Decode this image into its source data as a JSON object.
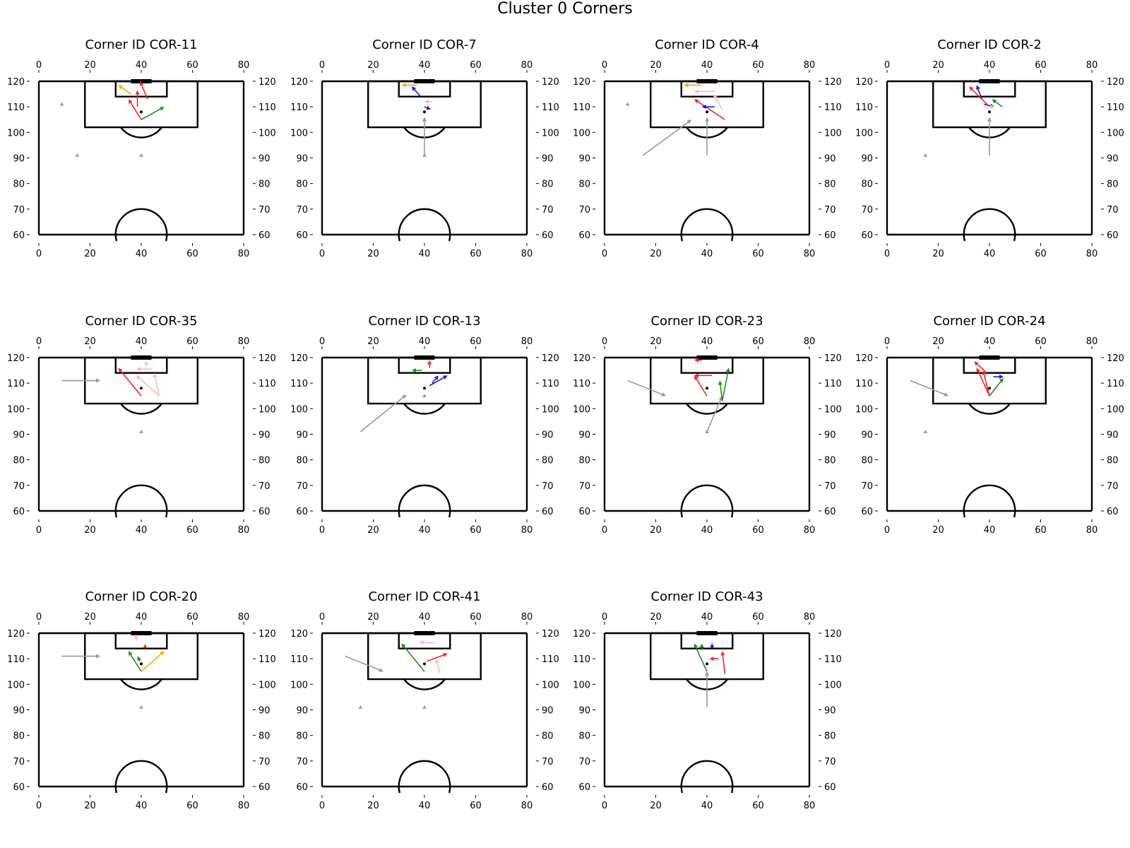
{
  "figure": {
    "title": "Cluster 0 Corners"
  },
  "colors": {
    "pitch_line": "#000000",
    "grey": "#999999",
    "red": "#ff2020",
    "pink": "#ffb6c1",
    "green": "#228b22",
    "blue": "#1515dd",
    "orange": "#ffa500",
    "ball": "#000000"
  },
  "chart_data": [
    {
      "type": "pitch",
      "title": "Corner ID COR-11",
      "xlim": [
        0,
        80
      ],
      "ylim": [
        60,
        120
      ],
      "x_ticks": [
        0,
        20,
        40,
        60,
        80
      ],
      "y_ticks": [
        60,
        70,
        80,
        90,
        100,
        110,
        120
      ],
      "ball": [
        40,
        108
      ],
      "markers": [
        [
          9,
          111
        ],
        [
          15,
          91
        ],
        [
          40,
          91
        ]
      ],
      "arrows": [
        {
          "color": "orange",
          "from": [
            36,
            115
          ],
          "to": [
            31,
            118.5
          ]
        },
        {
          "color": "red",
          "from": [
            42.5,
            113
          ],
          "to": [
            39.5,
            120
          ]
        },
        {
          "color": "red",
          "from": [
            38.5,
            110
          ],
          "to": [
            38.5,
            116.5
          ]
        },
        {
          "color": "red",
          "from": [
            40,
            105
          ],
          "to": [
            35,
            113
          ]
        },
        {
          "color": "green",
          "from": [
            40,
            105
          ],
          "to": [
            49,
            110
          ]
        }
      ]
    },
    {
      "type": "pitch",
      "title": "Corner ID COR-7",
      "xlim": [
        0,
        80
      ],
      "ylim": [
        60,
        120
      ],
      "x_ticks": [
        0,
        20,
        40,
        60,
        80
      ],
      "y_ticks": [
        60,
        70,
        80,
        90,
        100,
        110,
        120
      ],
      "ball": [
        40,
        108
      ],
      "markers": [
        [
          40,
          91
        ]
      ],
      "arrows": [
        {
          "color": "grey",
          "from": [
            40,
            91
          ],
          "to": [
            40,
            106
          ]
        },
        {
          "color": "orange",
          "from": [
            37,
            118.5
          ],
          "to": [
            31,
            118.5
          ]
        },
        {
          "color": "blue",
          "from": [
            38.5,
            114
          ],
          "to": [
            35,
            118
          ]
        },
        {
          "color": "pink",
          "from": [
            43,
            112
          ],
          "to": [
            40,
            112
          ]
        },
        {
          "color": "blue",
          "from": [
            40,
            110
          ],
          "to": [
            42.5,
            109
          ]
        }
      ]
    },
    {
      "type": "pitch",
      "title": "Corner ID COR-4",
      "xlim": [
        0,
        80
      ],
      "ylim": [
        60,
        120
      ],
      "x_ticks": [
        0,
        20,
        40,
        60,
        80
      ],
      "y_ticks": [
        60,
        70,
        80,
        90,
        100,
        110,
        120
      ],
      "ball": [
        40,
        108
      ],
      "markers": [
        [
          9,
          111
        ]
      ],
      "arrows": [
        {
          "color": "grey",
          "from": [
            15,
            91
          ],
          "to": [
            34,
            105
          ]
        },
        {
          "color": "grey",
          "from": [
            40,
            91
          ],
          "to": [
            40,
            106
          ]
        },
        {
          "color": "orange",
          "from": [
            38,
            118.5
          ],
          "to": [
            31,
            118.5
          ]
        },
        {
          "color": "pink",
          "from": [
            43,
            116
          ],
          "to": [
            35,
            116
          ]
        },
        {
          "color": "red",
          "from": [
            47,
            105
          ],
          "to": [
            35,
            113
          ]
        },
        {
          "color": "pink",
          "from": [
            46,
            109
          ],
          "to": [
            42.5,
            115
          ]
        },
        {
          "color": "blue",
          "from": [
            43,
            110
          ],
          "to": [
            38,
            110
          ]
        }
      ]
    },
    {
      "type": "pitch",
      "title": "Corner ID COR-2",
      "xlim": [
        0,
        80
      ],
      "ylim": [
        60,
        120
      ],
      "x_ticks": [
        0,
        20,
        40,
        60,
        80
      ],
      "y_ticks": [
        60,
        70,
        80,
        90,
        100,
        110,
        120
      ],
      "ball": [
        40,
        108
      ],
      "markers": [
        [
          15,
          91
        ]
      ],
      "arrows": [
        {
          "color": "grey",
          "from": [
            40,
            91
          ],
          "to": [
            40,
            106
          ]
        },
        {
          "color": "blue",
          "from": [
            37,
            113
          ],
          "to": [
            35,
            118.5
          ]
        },
        {
          "color": "red",
          "from": [
            39,
            111
          ],
          "to": [
            32,
            118
          ]
        },
        {
          "color": "green",
          "from": [
            45,
            110
          ],
          "to": [
            41,
            113
          ]
        },
        {
          "color": "blue",
          "from": [
            38,
            111
          ],
          "to": [
            42,
            110
          ]
        },
        {
          "color": "pink",
          "from": [
            38,
            110
          ],
          "to": [
            42,
            110
          ]
        }
      ]
    },
    {
      "type": "pitch",
      "title": "Corner ID COR-35",
      "xlim": [
        0,
        80
      ],
      "ylim": [
        60,
        120
      ],
      "x_ticks": [
        0,
        20,
        40,
        60,
        80
      ],
      "y_ticks": [
        60,
        70,
        80,
        90,
        100,
        110,
        120
      ],
      "ball": [
        40,
        108
      ],
      "markers": [
        [
          40,
          91
        ]
      ],
      "arrows": [
        {
          "color": "grey",
          "from": [
            9,
            111
          ],
          "to": [
            24,
            111
          ]
        },
        {
          "color": "red",
          "from": [
            40,
            105
          ],
          "to": [
            31,
            116
          ]
        },
        {
          "color": "pink",
          "from": [
            47,
            105
          ],
          "to": [
            38,
            113
          ]
        },
        {
          "color": "pink",
          "from": [
            47,
            105
          ],
          "to": [
            45,
            114
          ]
        },
        {
          "color": "pink",
          "from": [
            44,
            115.5
          ],
          "to": [
            38,
            115.5
          ]
        },
        {
          "color": "pink",
          "from": [
            42,
            118
          ],
          "to": [
            42,
            116.5
          ]
        }
      ]
    },
    {
      "type": "pitch",
      "title": "Corner ID COR-13",
      "xlim": [
        0,
        80
      ],
      "ylim": [
        60,
        120
      ],
      "x_ticks": [
        0,
        20,
        40,
        60,
        80
      ],
      "y_ticks": [
        60,
        70,
        80,
        90,
        100,
        110,
        120
      ],
      "ball": [
        40,
        108
      ],
      "markers": [
        [
          40,
          105
        ]
      ],
      "arrows": [
        {
          "color": "grey",
          "from": [
            15,
            91
          ],
          "to": [
            33,
            105.5
          ]
        },
        {
          "color": "red",
          "from": [
            42,
            116
          ],
          "to": [
            42,
            119
          ]
        },
        {
          "color": "green",
          "from": [
            39,
            115
          ],
          "to": [
            35,
            115
          ]
        },
        {
          "color": "blue",
          "from": [
            42,
            109
          ],
          "to": [
            49,
            113
          ]
        },
        {
          "color": "blue",
          "from": [
            43,
            110
          ],
          "to": [
            45.5,
            113
          ]
        }
      ]
    },
    {
      "type": "pitch",
      "title": "Corner ID COR-23",
      "xlim": [
        0,
        80
      ],
      "ylim": [
        60,
        120
      ],
      "x_ticks": [
        0,
        20,
        40,
        60,
        80
      ],
      "y_ticks": [
        60,
        70,
        80,
        90,
        100,
        110,
        120
      ],
      "ball": [
        40,
        108
      ],
      "markers": [
        [
          40,
          91
        ]
      ],
      "arrows": [
        {
          "color": "grey",
          "from": [
            9,
            111
          ],
          "to": [
            24,
            105
          ]
        },
        {
          "color": "grey",
          "from": [
            40,
            91
          ],
          "to": [
            46,
            105
          ]
        },
        {
          "color": "red",
          "from": [
            38,
            119
          ],
          "to": [
            35,
            119
          ]
        },
        {
          "color": "red",
          "from": [
            42,
            113
          ],
          "to": [
            35,
            113
          ]
        },
        {
          "color": "red",
          "from": [
            40,
            105
          ],
          "to": [
            35,
            113
          ]
        },
        {
          "color": "green",
          "from": [
            46,
            103
          ],
          "to": [
            45,
            111
          ]
        },
        {
          "color": "green",
          "from": [
            46,
            103
          ],
          "to": [
            48.5,
            116
          ]
        }
      ]
    },
    {
      "type": "pitch",
      "title": "Corner ID COR-24",
      "xlim": [
        0,
        80
      ],
      "ylim": [
        60,
        120
      ],
      "x_ticks": [
        0,
        20,
        40,
        60,
        80
      ],
      "y_ticks": [
        60,
        70,
        80,
        90,
        100,
        110,
        120
      ],
      "ball": [
        40,
        108
      ],
      "markers": [
        [
          15,
          91
        ]
      ],
      "arrows": [
        {
          "color": "grey",
          "from": [
            9,
            111
          ],
          "to": [
            24,
            105
          ]
        },
        {
          "color": "red",
          "from": [
            40,
            105
          ],
          "to": [
            35,
            116
          ]
        },
        {
          "color": "red",
          "from": [
            40,
            105
          ],
          "to": [
            37.5,
            115
          ]
        },
        {
          "color": "red",
          "from": [
            39,
            114
          ],
          "to": [
            34,
            118.5
          ]
        },
        {
          "color": "blue",
          "from": [
            41.5,
            112.5
          ],
          "to": [
            45.5,
            112.5
          ]
        },
        {
          "color": "green",
          "from": [
            40,
            105
          ],
          "to": [
            45.5,
            112
          ]
        }
      ]
    },
    {
      "type": "pitch",
      "title": "Corner ID COR-20",
      "xlim": [
        0,
        80
      ],
      "ylim": [
        60,
        120
      ],
      "x_ticks": [
        0,
        20,
        40,
        60,
        80
      ],
      "y_ticks": [
        60,
        70,
        80,
        90,
        100,
        110,
        120
      ],
      "ball": [
        40,
        108
      ],
      "markers": [
        [
          40,
          91
        ]
      ],
      "arrows": [
        {
          "color": "grey",
          "from": [
            9,
            111
          ],
          "to": [
            24,
            111
          ]
        },
        {
          "color": "pink",
          "from": [
            38,
            117
          ],
          "to": [
            38,
            119.5
          ]
        },
        {
          "color": "red",
          "from": [
            41.5,
            115
          ],
          "to": [
            41.5,
            115.8
          ]
        },
        {
          "color": "green",
          "from": [
            40,
            105
          ],
          "to": [
            35,
            113
          ]
        },
        {
          "color": "green",
          "from": [
            39.5,
            109
          ],
          "to": [
            38.5,
            111
          ]
        },
        {
          "color": "orange",
          "from": [
            40,
            105
          ],
          "to": [
            49,
            113
          ]
        }
      ]
    },
    {
      "type": "pitch",
      "title": "Corner ID COR-41",
      "xlim": [
        0,
        80
      ],
      "ylim": [
        60,
        120
      ],
      "x_ticks": [
        0,
        20,
        40,
        60,
        80
      ],
      "y_ticks": [
        60,
        70,
        80,
        90,
        100,
        110,
        120
      ],
      "ball": [
        40,
        108
      ],
      "markers": [
        [
          15,
          91
        ],
        [
          40,
          91
        ]
      ],
      "arrows": [
        {
          "color": "grey",
          "from": [
            9,
            111
          ],
          "to": [
            24,
            105
          ]
        },
        {
          "color": "green",
          "from": [
            40,
            105
          ],
          "to": [
            31,
            116
          ]
        },
        {
          "color": "pink",
          "from": [
            44,
            116
          ],
          "to": [
            38,
            116.5
          ]
        },
        {
          "color": "pink",
          "from": [
            46,
            104.5
          ],
          "to": [
            44.5,
            110
          ]
        },
        {
          "color": "red",
          "from": [
            41,
            109
          ],
          "to": [
            49,
            112
          ]
        }
      ]
    },
    {
      "type": "pitch",
      "title": "Corner ID COR-43",
      "xlim": [
        0,
        80
      ],
      "ylim": [
        60,
        120
      ],
      "x_ticks": [
        0,
        20,
        40,
        60,
        80
      ],
      "y_ticks": [
        60,
        70,
        80,
        90,
        100,
        110,
        120
      ],
      "ball": [
        40,
        108
      ],
      "markers": [],
      "arrows": [
        {
          "color": "grey",
          "from": [
            40,
            91
          ],
          "to": [
            40,
            105
          ]
        },
        {
          "color": "green",
          "from": [
            40,
            105
          ],
          "to": [
            35,
            116
          ]
        },
        {
          "color": "green",
          "from": [
            38,
            113.5
          ],
          "to": [
            38,
            116
          ]
        },
        {
          "color": "blue",
          "from": [
            42,
            116
          ],
          "to": [
            42,
            113.5
          ]
        },
        {
          "color": "red",
          "from": [
            44.5,
            110
          ],
          "to": [
            41,
            110
          ]
        },
        {
          "color": "red",
          "from": [
            47,
            104
          ],
          "to": [
            46,
            113
          ]
        }
      ]
    }
  ]
}
